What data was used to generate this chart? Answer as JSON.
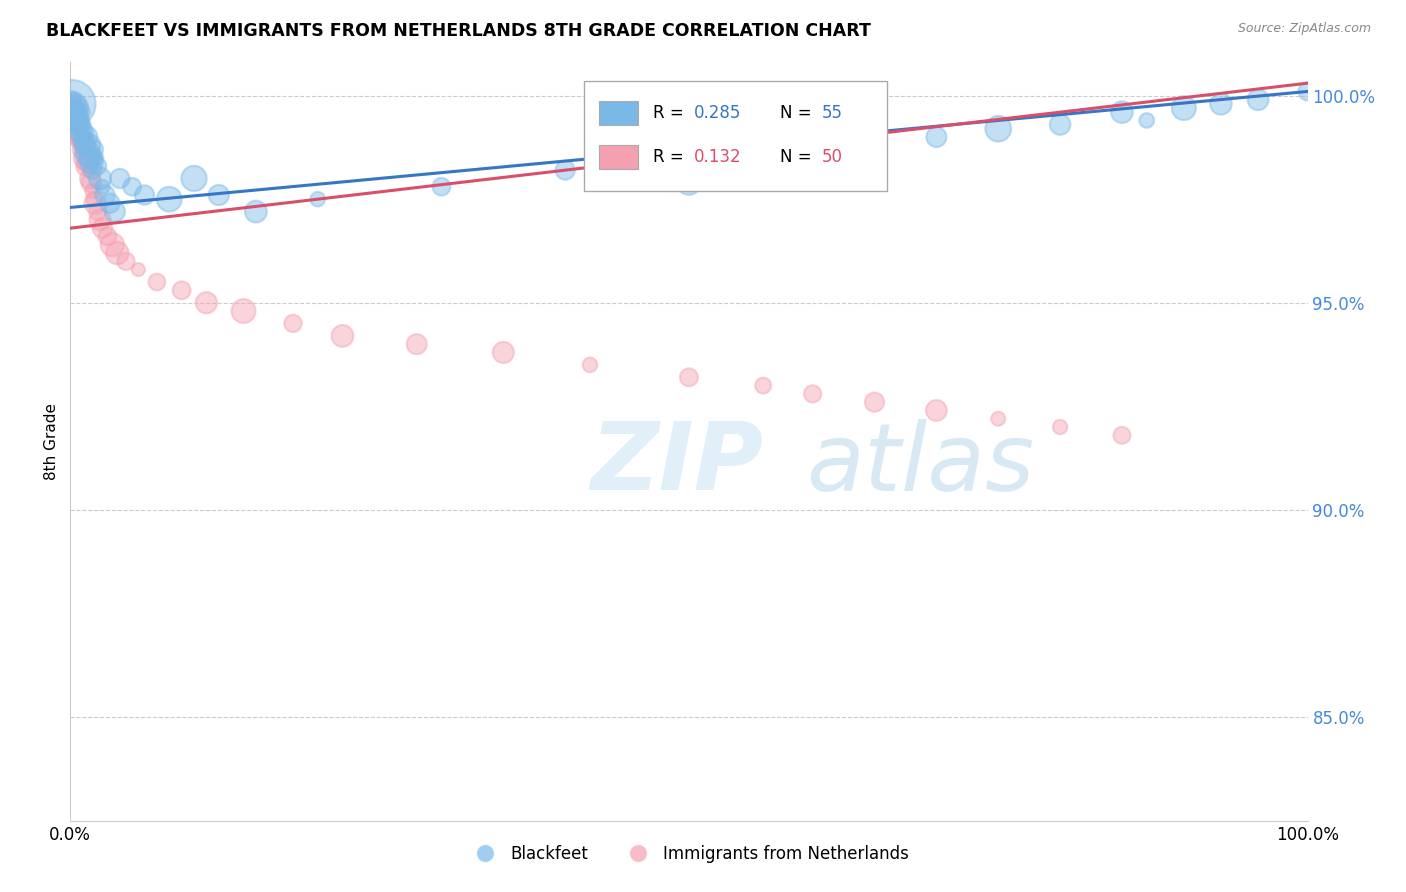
{
  "title": "BLACKFEET VS IMMIGRANTS FROM NETHERLANDS 8TH GRADE CORRELATION CHART",
  "source": "Source: ZipAtlas.com",
  "ylabel": "8th Grade",
  "xlim": [
    0.0,
    1.0
  ],
  "ylim": [
    0.825,
    1.008
  ],
  "yticks": [
    0.85,
    0.9,
    0.95,
    1.0
  ],
  "ytick_labels": [
    "85.0%",
    "90.0%",
    "95.0%",
    "100.0%"
  ],
  "blue_color": "#7ab8e8",
  "pink_color": "#f4a0b0",
  "trendline_blue": "#3676c4",
  "trendline_pink": "#d94f6a",
  "blue_trend_start_y": 0.973,
  "blue_trend_end_y": 1.001,
  "pink_trend_start_y": 0.968,
  "pink_trend_end_y": 1.003,
  "blackfeet_x": [
    0.001,
    0.002,
    0.002,
    0.003,
    0.003,
    0.004,
    0.004,
    0.005,
    0.005,
    0.006,
    0.006,
    0.007,
    0.007,
    0.008,
    0.008,
    0.009,
    0.01,
    0.01,
    0.011,
    0.012,
    0.013,
    0.014,
    0.015,
    0.016,
    0.017,
    0.018,
    0.019,
    0.02,
    0.022,
    0.024,
    0.026,
    0.028,
    0.032,
    0.036,
    0.04,
    0.05,
    0.06,
    0.08,
    0.1,
    0.12,
    0.15,
    0.2,
    0.3,
    0.4,
    0.5,
    0.6,
    0.7,
    0.75,
    0.8,
    0.85,
    0.87,
    0.9,
    0.93,
    0.96,
    1.0
  ],
  "blackfeet_y": [
    0.998,
    0.997,
    0.999,
    0.996,
    0.998,
    0.995,
    0.997,
    0.994,
    0.996,
    0.993,
    0.995,
    0.992,
    0.994,
    0.993,
    0.996,
    0.991,
    0.99,
    0.993,
    0.989,
    0.988,
    0.99,
    0.986,
    0.988,
    0.985,
    0.984,
    0.982,
    0.987,
    0.985,
    0.983,
    0.98,
    0.978,
    0.976,
    0.974,
    0.972,
    0.98,
    0.978,
    0.976,
    0.975,
    0.98,
    0.976,
    0.972,
    0.975,
    0.978,
    0.982,
    0.979,
    0.984,
    0.99,
    0.992,
    0.993,
    0.996,
    0.994,
    0.997,
    0.998,
    0.999,
    1.001
  ],
  "blackfeet_sizes": [
    150,
    120,
    100,
    130,
    110,
    120,
    100,
    110,
    100,
    120,
    100,
    110,
    100,
    120,
    100,
    110,
    100,
    120,
    100,
    110,
    100,
    110,
    100,
    120,
    100,
    110,
    100,
    120,
    100,
    110,
    100,
    110,
    100,
    120,
    100,
    110,
    100,
    120,
    160,
    110,
    100,
    110,
    100,
    120,
    100,
    110,
    100,
    120,
    100,
    110,
    100,
    120,
    100,
    110,
    100
  ],
  "blackfeet_big_idx": 0,
  "netherlands_x": [
    0.001,
    0.002,
    0.002,
    0.003,
    0.003,
    0.004,
    0.004,
    0.005,
    0.005,
    0.006,
    0.006,
    0.007,
    0.008,
    0.009,
    0.01,
    0.011,
    0.012,
    0.013,
    0.014,
    0.015,
    0.016,
    0.017,
    0.018,
    0.019,
    0.02,
    0.022,
    0.024,
    0.026,
    0.03,
    0.034,
    0.038,
    0.045,
    0.055,
    0.07,
    0.09,
    0.11,
    0.14,
    0.18,
    0.22,
    0.28,
    0.35,
    0.42,
    0.5,
    0.56,
    0.6,
    0.65,
    0.7,
    0.75,
    0.8,
    0.85
  ],
  "netherlands_y": [
    0.996,
    0.998,
    0.997,
    0.995,
    0.997,
    0.993,
    0.996,
    0.994,
    0.992,
    0.991,
    0.993,
    0.99,
    0.989,
    0.988,
    0.987,
    0.986,
    0.985,
    0.983,
    0.984,
    0.982,
    0.98,
    0.979,
    0.977,
    0.975,
    0.974,
    0.972,
    0.97,
    0.968,
    0.966,
    0.964,
    0.962,
    0.96,
    0.958,
    0.955,
    0.953,
    0.95,
    0.948,
    0.945,
    0.942,
    0.94,
    0.938,
    0.935,
    0.932,
    0.93,
    0.928,
    0.926,
    0.924,
    0.922,
    0.92,
    0.918
  ],
  "netherlands_sizes": [
    120,
    110,
    100,
    120,
    100,
    110,
    100,
    110,
    100,
    120,
    100,
    110,
    100,
    120,
    100,
    110,
    100,
    110,
    100,
    120,
    100,
    110,
    100,
    120,
    100,
    110,
    100,
    120,
    100,
    110,
    100,
    110,
    100,
    120,
    100,
    110,
    100,
    120,
    100,
    110,
    100,
    110,
    100,
    120,
    100,
    110,
    100,
    120,
    100,
    110
  ]
}
